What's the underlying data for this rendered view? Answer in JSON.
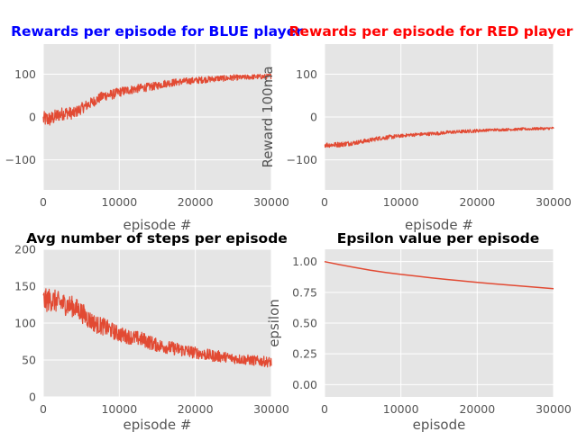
{
  "chart_data": [
    {
      "type": "line",
      "title": "Rewards per episode for BLUE player",
      "title_color": "#0000ff",
      "xlabel": "episode #",
      "ylabel": "",
      "xlim": [
        0,
        30000
      ],
      "ylim": [
        -170,
        170
      ],
      "xticks": [
        0,
        10000,
        20000,
        30000
      ],
      "xtick_labels": [
        "0",
        "10000",
        "20000",
        "30000"
      ],
      "yticks": [
        -100,
        0,
        100
      ],
      "ytick_labels": [
        "−100",
        "0",
        "100"
      ],
      "grid": true,
      "series_color": "#e24a33",
      "x": [
        0,
        1000,
        2000,
        3000,
        4000,
        5000,
        6000,
        7000,
        8000,
        9000,
        10000,
        11000,
        12000,
        13000,
        14000,
        15000,
        16000,
        17000,
        18000,
        19000,
        20000,
        21000,
        22000,
        23000,
        24000,
        25000,
        26000,
        27000,
        28000,
        29000,
        30000
      ],
      "y": [
        -5,
        -5,
        5,
        10,
        8,
        20,
        30,
        40,
        50,
        52,
        58,
        62,
        65,
        68,
        70,
        73,
        78,
        80,
        82,
        84,
        85,
        87,
        88,
        90,
        90,
        92,
        92,
        93,
        94,
        94,
        95
      ],
      "noise": [
        18,
        18,
        16,
        15,
        14,
        13,
        13,
        12,
        12,
        12,
        11,
        11,
        10,
        10,
        10,
        9,
        9,
        9,
        8,
        8,
        8,
        8,
        7,
        7,
        7,
        7,
        6,
        6,
        6,
        6,
        6
      ]
    },
    {
      "type": "line",
      "title": "Rewards per episode for RED player",
      "title_color": "#ff0000",
      "xlabel": "episode #",
      "ylabel": "Reward 100ma",
      "xlim": [
        0,
        30000
      ],
      "ylim": [
        -170,
        170
      ],
      "xticks": [
        0,
        10000,
        20000,
        30000
      ],
      "xtick_labels": [
        "0",
        "10000",
        "20000",
        "30000"
      ],
      "yticks": [
        -100,
        0,
        100
      ],
      "ytick_labels": [
        "−100",
        "0",
        "100"
      ],
      "grid": true,
      "series_color": "#e24a33",
      "x": [
        0,
        1000,
        2000,
        3000,
        4000,
        5000,
        6000,
        7000,
        8000,
        9000,
        10000,
        11000,
        12000,
        13000,
        14000,
        15000,
        16000,
        17000,
        18000,
        19000,
        20000,
        21000,
        22000,
        23000,
        24000,
        25000,
        26000,
        27000,
        28000,
        29000,
        30000
      ],
      "y": [
        -65,
        -65,
        -64,
        -62,
        -60,
        -57,
        -54,
        -50,
        -48,
        -46,
        -44,
        -42,
        -41,
        -40,
        -39,
        -38,
        -36,
        -35,
        -34,
        -33,
        -32,
        -31,
        -30,
        -30,
        -29,
        -29,
        -28,
        -28,
        -27,
        -27,
        -26
      ],
      "noise": [
        6,
        6,
        6,
        6,
        5,
        5,
        5,
        5,
        5,
        5,
        4,
        4,
        4,
        4,
        4,
        4,
        4,
        4,
        4,
        4,
        4,
        3,
        3,
        3,
        3,
        3,
        3,
        3,
        3,
        3,
        3
      ]
    },
    {
      "type": "line",
      "title": "Avg number of steps per episode",
      "title_color": "#000000",
      "xlabel": "episode #",
      "ylabel": "",
      "xlim": [
        0,
        30000
      ],
      "ylim": [
        0,
        200
      ],
      "xticks": [
        0,
        10000,
        20000,
        30000
      ],
      "xtick_labels": [
        "0",
        "10000",
        "20000",
        "30000"
      ],
      "yticks": [
        0,
        50,
        100,
        150,
        200
      ],
      "ytick_labels": [
        "0",
        "50",
        "100",
        "150",
        "200"
      ],
      "grid": true,
      "series_color": "#e24a33",
      "x": [
        0,
        1000,
        2000,
        3000,
        4000,
        5000,
        6000,
        7000,
        8000,
        9000,
        10000,
        11000,
        12000,
        13000,
        14000,
        15000,
        16000,
        17000,
        18000,
        19000,
        20000,
        21000,
        22000,
        23000,
        24000,
        25000,
        26000,
        27000,
        28000,
        29000,
        30000
      ],
      "y": [
        130,
        132,
        128,
        125,
        122,
        115,
        105,
        98,
        95,
        90,
        85,
        82,
        80,
        78,
        74,
        70,
        68,
        66,
        64,
        62,
        60,
        58,
        56,
        55,
        54,
        52,
        51,
        50,
        49,
        48,
        47
      ],
      "noise": [
        16,
        16,
        15,
        15,
        14,
        14,
        13,
        12,
        12,
        11,
        11,
        10,
        10,
        10,
        10,
        9,
        9,
        9,
        9,
        9,
        8,
        8,
        8,
        8,
        7,
        7,
        7,
        7,
        7,
        7,
        7
      ]
    },
    {
      "type": "line",
      "title": "Epsilon value per episode",
      "title_color": "#000000",
      "xlabel": "episode",
      "ylabel": "epsilon",
      "xlim": [
        0,
        30000
      ],
      "ylim": [
        -0.1,
        1.1
      ],
      "xticks": [
        0,
        10000,
        20000,
        30000
      ],
      "xtick_labels": [
        "0",
        "10000",
        "20000",
        "30000"
      ],
      "yticks": [
        0.0,
        0.25,
        0.5,
        0.75,
        1.0
      ],
      "ytick_labels": [
        "0.00",
        "0.25",
        "0.50",
        "0.75",
        "1.00"
      ],
      "grid": true,
      "series_color": "#e24a33",
      "x": [
        0,
        2000,
        4000,
        6000,
        8000,
        10000,
        12000,
        14000,
        16000,
        18000,
        20000,
        22000,
        24000,
        26000,
        28000,
        30000
      ],
      "y": [
        1.0,
        0.975,
        0.952,
        0.93,
        0.912,
        0.896,
        0.882,
        0.868,
        0.855,
        0.843,
        0.831,
        0.82,
        0.81,
        0.8,
        0.79,
        0.78
      ],
      "noise": [
        0,
        0,
        0,
        0,
        0,
        0,
        0,
        0,
        0,
        0,
        0,
        0,
        0,
        0,
        0,
        0
      ]
    }
  ]
}
